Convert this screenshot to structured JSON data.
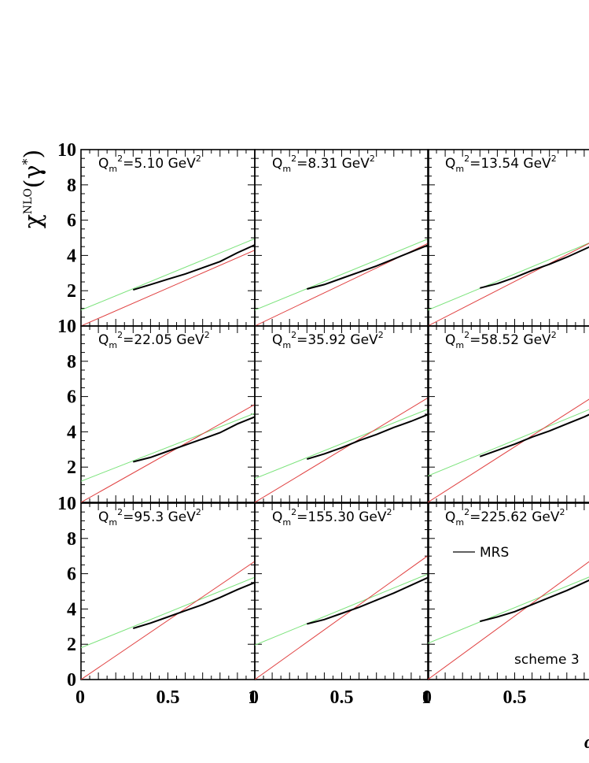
{
  "chart_data": {
    "type": "line",
    "ylabel_base": "χ",
    "ylabel_sup": "NLO",
    "ylabel_arg": "(γ",
    "ylabel_arg_sup": "*",
    "ylabel_close": ")",
    "xlabel_visible": "α",
    "xlim": [
      0,
      1
    ],
    "ylim": [
      0,
      10
    ],
    "x_tick_labels": [
      "0",
      "0.5",
      "1"
    ],
    "y_tick_labels": [
      "0",
      "2",
      "4",
      "6",
      "8",
      "10"
    ],
    "colors": {
      "data_line": "#000000",
      "green_fit": "#7be37b",
      "red_line": "#e04040"
    },
    "legend": {
      "label": "MRS"
    },
    "annotation": "scheme 3",
    "panels": [
      {
        "label_q": "Q",
        "label_sub": "m",
        "label_rest": "=5.10 GeV",
        "green": [
          0.9,
          4.95
        ],
        "red": [
          0.0,
          4.3
        ],
        "series": [
          {
            "x": [
              0.3,
              0.4,
              0.5,
              0.6,
              0.7,
              0.8,
              0.9,
              1.0
            ],
            "y": [
              2.05,
              2.35,
              2.65,
              2.95,
              3.3,
              3.65,
              4.15,
              4.6
            ]
          }
        ]
      },
      {
        "label_q": "Q",
        "label_sub": "m",
        "label_rest": "=8.31 GeV",
        "green": [
          0.9,
          4.95
        ],
        "red": [
          0.0,
          4.7
        ],
        "series": [
          {
            "x": [
              0.3,
              0.4,
              0.5,
              0.6,
              0.7,
              0.8,
              0.9,
              1.0
            ],
            "y": [
              2.1,
              2.35,
              2.7,
              3.05,
              3.4,
              3.8,
              4.2,
              4.6
            ]
          }
        ]
      },
      {
        "label_q": "Q",
        "label_sub": "m",
        "label_rest": "=13.54 GeV",
        "green": [
          0.9,
          5.0
        ],
        "red": [
          0.0,
          5.05
        ],
        "series": [
          {
            "x": [
              0.3,
              0.4,
              0.5,
              0.6,
              0.7,
              0.8,
              0.9,
              1.0
            ],
            "y": [
              2.15,
              2.4,
              2.75,
              3.15,
              3.5,
              3.9,
              4.35,
              4.8
            ]
          }
        ]
      },
      {
        "label_q": "Q",
        "label_sub": "m",
        "label_rest": "=22.05 GeV",
        "green": [
          1.2,
          5.05
        ],
        "red": [
          0.0,
          5.55
        ],
        "series": [
          {
            "x": [
              0.3,
              0.4,
              0.5,
              0.6,
              0.7,
              0.8,
              0.9,
              1.0
            ],
            "y": [
              2.3,
              2.55,
              2.9,
              3.25,
              3.6,
              3.95,
              4.45,
              4.85
            ]
          }
        ]
      },
      {
        "label_q": "Q",
        "label_sub": "m",
        "label_rest": "=35.92 GeV",
        "green": [
          1.35,
          5.3
        ],
        "red": [
          0.0,
          5.95
        ],
        "series": [
          {
            "x": [
              0.3,
              0.4,
              0.5,
              0.6,
              0.7,
              0.8,
              0.9,
              1.0
            ],
            "y": [
              2.45,
              2.75,
              3.1,
              3.5,
              3.85,
              4.25,
              4.6,
              5.0
            ]
          }
        ]
      },
      {
        "label_q": "Q",
        "label_sub": "m",
        "label_rest": "=58.52 GeV",
        "green": [
          1.5,
          5.55
        ],
        "red": [
          0.0,
          6.3
        ],
        "series": [
          {
            "x": [
              0.3,
              0.4,
              0.5,
              0.6,
              0.7,
              0.8,
              0.9,
              1.0
            ],
            "y": [
              2.6,
              2.95,
              3.3,
              3.7,
              4.05,
              4.45,
              4.85,
              5.3
            ]
          }
        ]
      },
      {
        "label_q": "Q",
        "label_sub": "m",
        "label_rest": "=95.3 GeV",
        "green": [
          1.8,
          5.8
        ],
        "red": [
          0.0,
          6.7
        ],
        "series": [
          {
            "x": [
              0.3,
              0.4,
              0.5,
              0.6,
              0.7,
              0.8,
              0.9,
              1.0
            ],
            "y": [
              2.9,
              3.2,
              3.55,
              3.9,
              4.25,
              4.65,
              5.1,
              5.5
            ]
          }
        ]
      },
      {
        "label_q": "Q",
        "label_sub": "m",
        "label_rest": "=155.30 GeV",
        "green": [
          1.95,
          6.0
        ],
        "red": [
          0.0,
          7.05
        ],
        "series": [
          {
            "x": [
              0.3,
              0.4,
              0.5,
              0.6,
              0.7,
              0.8,
              0.9,
              1.0
            ],
            "y": [
              3.15,
              3.4,
              3.75,
              4.1,
              4.5,
              4.9,
              5.35,
              5.8
            ]
          }
        ]
      },
      {
        "label_q": "Q",
        "label_sub": "m",
        "label_rest": "=225.62 GeV",
        "green": [
          2.05,
          6.1
        ],
        "red": [
          0.0,
          7.2
        ],
        "series": [
          {
            "x": [
              0.3,
              0.4,
              0.5,
              0.6,
              0.7,
              0.8,
              0.9,
              1.0
            ],
            "y": [
              3.3,
              3.55,
              3.85,
              4.25,
              4.65,
              5.05,
              5.5,
              5.95
            ]
          }
        ]
      }
    ]
  }
}
